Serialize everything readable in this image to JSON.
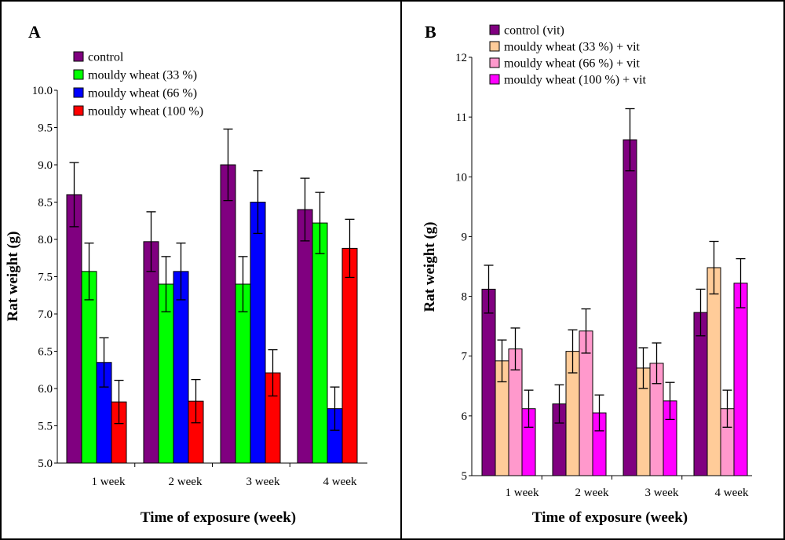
{
  "chart_data": [
    {
      "panel": "A",
      "type": "bar",
      "xlabel": "Time of exposure (week)",
      "ylabel": "Rat weight (g)",
      "ylim": [
        5.0,
        10.0
      ],
      "yticks": [
        "5.0",
        "5.5",
        "6.0",
        "6.5",
        "7.0",
        "7.5",
        "8.0",
        "8.5",
        "9.0",
        "9.5",
        "10.0"
      ],
      "categories": [
        "1 week",
        "2 week",
        "3 week",
        "4 week"
      ],
      "legend_position": "top-left",
      "series": [
        {
          "name": "control",
          "color": "#800080",
          "values": [
            8.6,
            7.97,
            9.0,
            8.4
          ],
          "errors": [
            0.43,
            0.4,
            0.48,
            0.42
          ]
        },
        {
          "name": "mouldy wheat (33 %)",
          "color": "#00ff00",
          "values": [
            7.57,
            7.4,
            7.4,
            8.22
          ],
          "errors": [
            0.38,
            0.37,
            0.37,
            0.41
          ]
        },
        {
          "name": "mouldy wheat (66 %)",
          "color": "#0000ff",
          "values": [
            6.35,
            7.57,
            8.5,
            5.73
          ],
          "errors": [
            0.33,
            0.38,
            0.42,
            0.29
          ]
        },
        {
          "name": "mouldy wheat (100 %)",
          "color": "#ff0000",
          "values": [
            5.82,
            5.83,
            6.21,
            7.88
          ],
          "errors": [
            0.29,
            0.29,
            0.31,
            0.39
          ]
        }
      ]
    },
    {
      "panel": "B",
      "type": "bar",
      "xlabel": "Time of exposure (week)",
      "ylabel": "Rat weight (g)",
      "ylim": [
        5,
        12
      ],
      "yticks": [
        "5",
        "6",
        "7",
        "8",
        "9",
        "10",
        "11",
        "12"
      ],
      "categories": [
        "1 week",
        "2 week",
        "3 week",
        "4 week"
      ],
      "legend_position": "top",
      "series": [
        {
          "name": "control (vit)",
          "color": "#800080",
          "values": [
            8.12,
            6.2,
            10.62,
            7.73
          ],
          "errors": [
            0.4,
            0.32,
            0.52,
            0.39
          ]
        },
        {
          "name": "mouldy wheat (33 %) + vit",
          "color": "#ffcc99",
          "values": [
            6.92,
            7.08,
            6.8,
            8.48
          ],
          "errors": [
            0.35,
            0.36,
            0.34,
            0.44
          ]
        },
        {
          "name": "mouldy wheat (66 %) + vit",
          "color": "#ff99cc",
          "values": [
            7.12,
            7.42,
            6.88,
            6.12
          ],
          "errors": [
            0.35,
            0.37,
            0.34,
            0.31
          ]
        },
        {
          "name": "mouldy wheat (100 %) + vit",
          "color": "#ff00ff",
          "values": [
            6.12,
            6.05,
            6.25,
            8.22
          ],
          "errors": [
            0.31,
            0.3,
            0.31,
            0.41
          ]
        }
      ]
    }
  ]
}
